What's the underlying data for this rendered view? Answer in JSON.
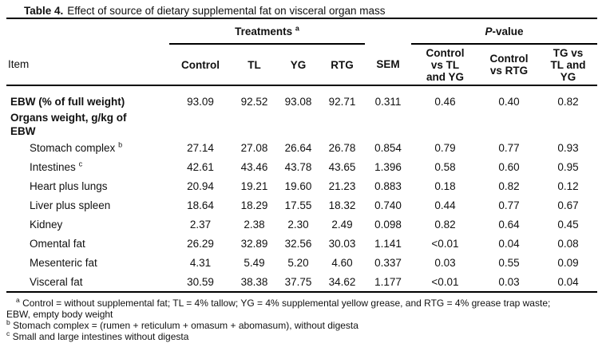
{
  "caption": {
    "label": "Table 4.",
    "text": "Effect of source of dietary supplemental fat on visceral organ mass"
  },
  "header": {
    "treatments_label": "Treatments",
    "treatments_sup": "a",
    "pvalue_prefix": "P",
    "pvalue_suffix": "-value"
  },
  "table": {
    "columns": [
      {
        "id": "item",
        "align": "left",
        "lines": [
          "Item"
        ]
      },
      {
        "id": "control",
        "lines": [
          "Control"
        ]
      },
      {
        "id": "tl",
        "lines": [
          "TL"
        ]
      },
      {
        "id": "yg",
        "lines": [
          "YG"
        ]
      },
      {
        "id": "rtg",
        "lines": [
          "RTG"
        ]
      },
      {
        "id": "sem",
        "lines": [
          "SEM"
        ]
      },
      {
        "id": "p-control-vs-tl-yg",
        "lines": [
          "Control",
          "vs TL",
          "and YG"
        ]
      },
      {
        "id": "p-control-vs-rtg",
        "lines": [
          "Control",
          "vs RTG"
        ]
      },
      {
        "id": "p-tg-vs-tl-yg",
        "lines": [
          "TG vs",
          "TL and",
          "YG"
        ]
      }
    ],
    "rows": [
      {
        "lines": [
          "EBW (% of full weight)"
        ],
        "bold": true,
        "indent": false,
        "values": [
          "93.09",
          "92.52",
          "93.08",
          "92.71",
          "0.311",
          "0.46",
          "0.40",
          "0.82"
        ]
      },
      {
        "lines": [
          "Organs weight, g/kg of",
          "EBW"
        ],
        "bold": true,
        "indent": false,
        "values": []
      },
      {
        "lines": [
          "Stomach complex"
        ],
        "sup": "b",
        "indent": true,
        "values": [
          "27.14",
          "27.08",
          "26.64",
          "26.78",
          "0.854",
          "0.79",
          "0.77",
          "0.93"
        ]
      },
      {
        "lines": [
          "Intestines"
        ],
        "sup": "c",
        "indent": true,
        "values": [
          "42.61",
          "43.46",
          "43.78",
          "43.65",
          "1.396",
          "0.58",
          "0.60",
          "0.95"
        ]
      },
      {
        "lines": [
          "Heart plus lungs"
        ],
        "indent": true,
        "values": [
          "20.94",
          "19.21",
          "19.60",
          "21.23",
          "0.883",
          "0.18",
          "0.82",
          "0.12"
        ]
      },
      {
        "lines": [
          "Liver plus spleen"
        ],
        "indent": true,
        "values": [
          "18.64",
          "18.29",
          "17.55",
          "18.32",
          "0.740",
          "0.44",
          "0.77",
          "0.67"
        ]
      },
      {
        "lines": [
          "Kidney"
        ],
        "indent": true,
        "values": [
          "2.37",
          "2.38",
          "2.30",
          "2.49",
          "0.098",
          "0.82",
          "0.64",
          "0.45"
        ]
      },
      {
        "lines": [
          "Omental fat"
        ],
        "indent": true,
        "values": [
          "26.29",
          "32.89",
          "32.56",
          "30.03",
          "1.141",
          "<0.01",
          "0.04",
          "0.08"
        ]
      },
      {
        "lines": [
          "Mesenteric fat"
        ],
        "indent": true,
        "values": [
          "4.31",
          "5.49",
          "5.20",
          "4.60",
          "0.337",
          "0.03",
          "0.55",
          "0.09"
        ]
      },
      {
        "lines": [
          "Visceral fat"
        ],
        "indent": true,
        "values": [
          "30.59",
          "38.38",
          "37.75",
          "34.62",
          "1.177",
          "<0.01",
          "0.03",
          "0.04"
        ]
      }
    ]
  },
  "footnotes": [
    {
      "sup": "a",
      "text": "Control = without supplemental fat; TL = 4% tallow; YG = 4% supplemental yellow grease, and RTG = 4% grease trap waste; EBW, empty body weight"
    },
    {
      "sup": "b",
      "text": "Stomach complex = (rumen + reticulum + omasum + abomasum), without digesta"
    },
    {
      "sup": "c",
      "text": "Small and large intestines without digesta"
    }
  ]
}
